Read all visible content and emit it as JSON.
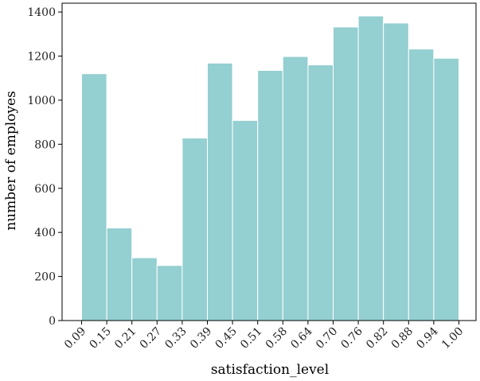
{
  "chart_data": {
    "type": "bar",
    "title": "",
    "xlabel": "satisfaction_level",
    "ylabel": "number of employes",
    "x_tick_labels": [
      "0.09",
      "0.15",
      "0.21",
      "0.27",
      "0.33",
      "0.39",
      "0.45",
      "0.51",
      "0.58",
      "0.64",
      "0.70",
      "0.76",
      "0.82",
      "0.88",
      "0.94",
      "1.00"
    ],
    "values": [
      1120,
      420,
      285,
      250,
      828,
      1168,
      908,
      1135,
      1198,
      1160,
      1332,
      1382,
      1350,
      1232,
      1190
    ],
    "y_ticks": [
      0,
      200,
      400,
      600,
      800,
      1000,
      1200,
      1400
    ],
    "ylim": [
      0,
      1440
    ],
    "bar_color": "#94cfd1",
    "grid": false,
    "legend": "none"
  }
}
